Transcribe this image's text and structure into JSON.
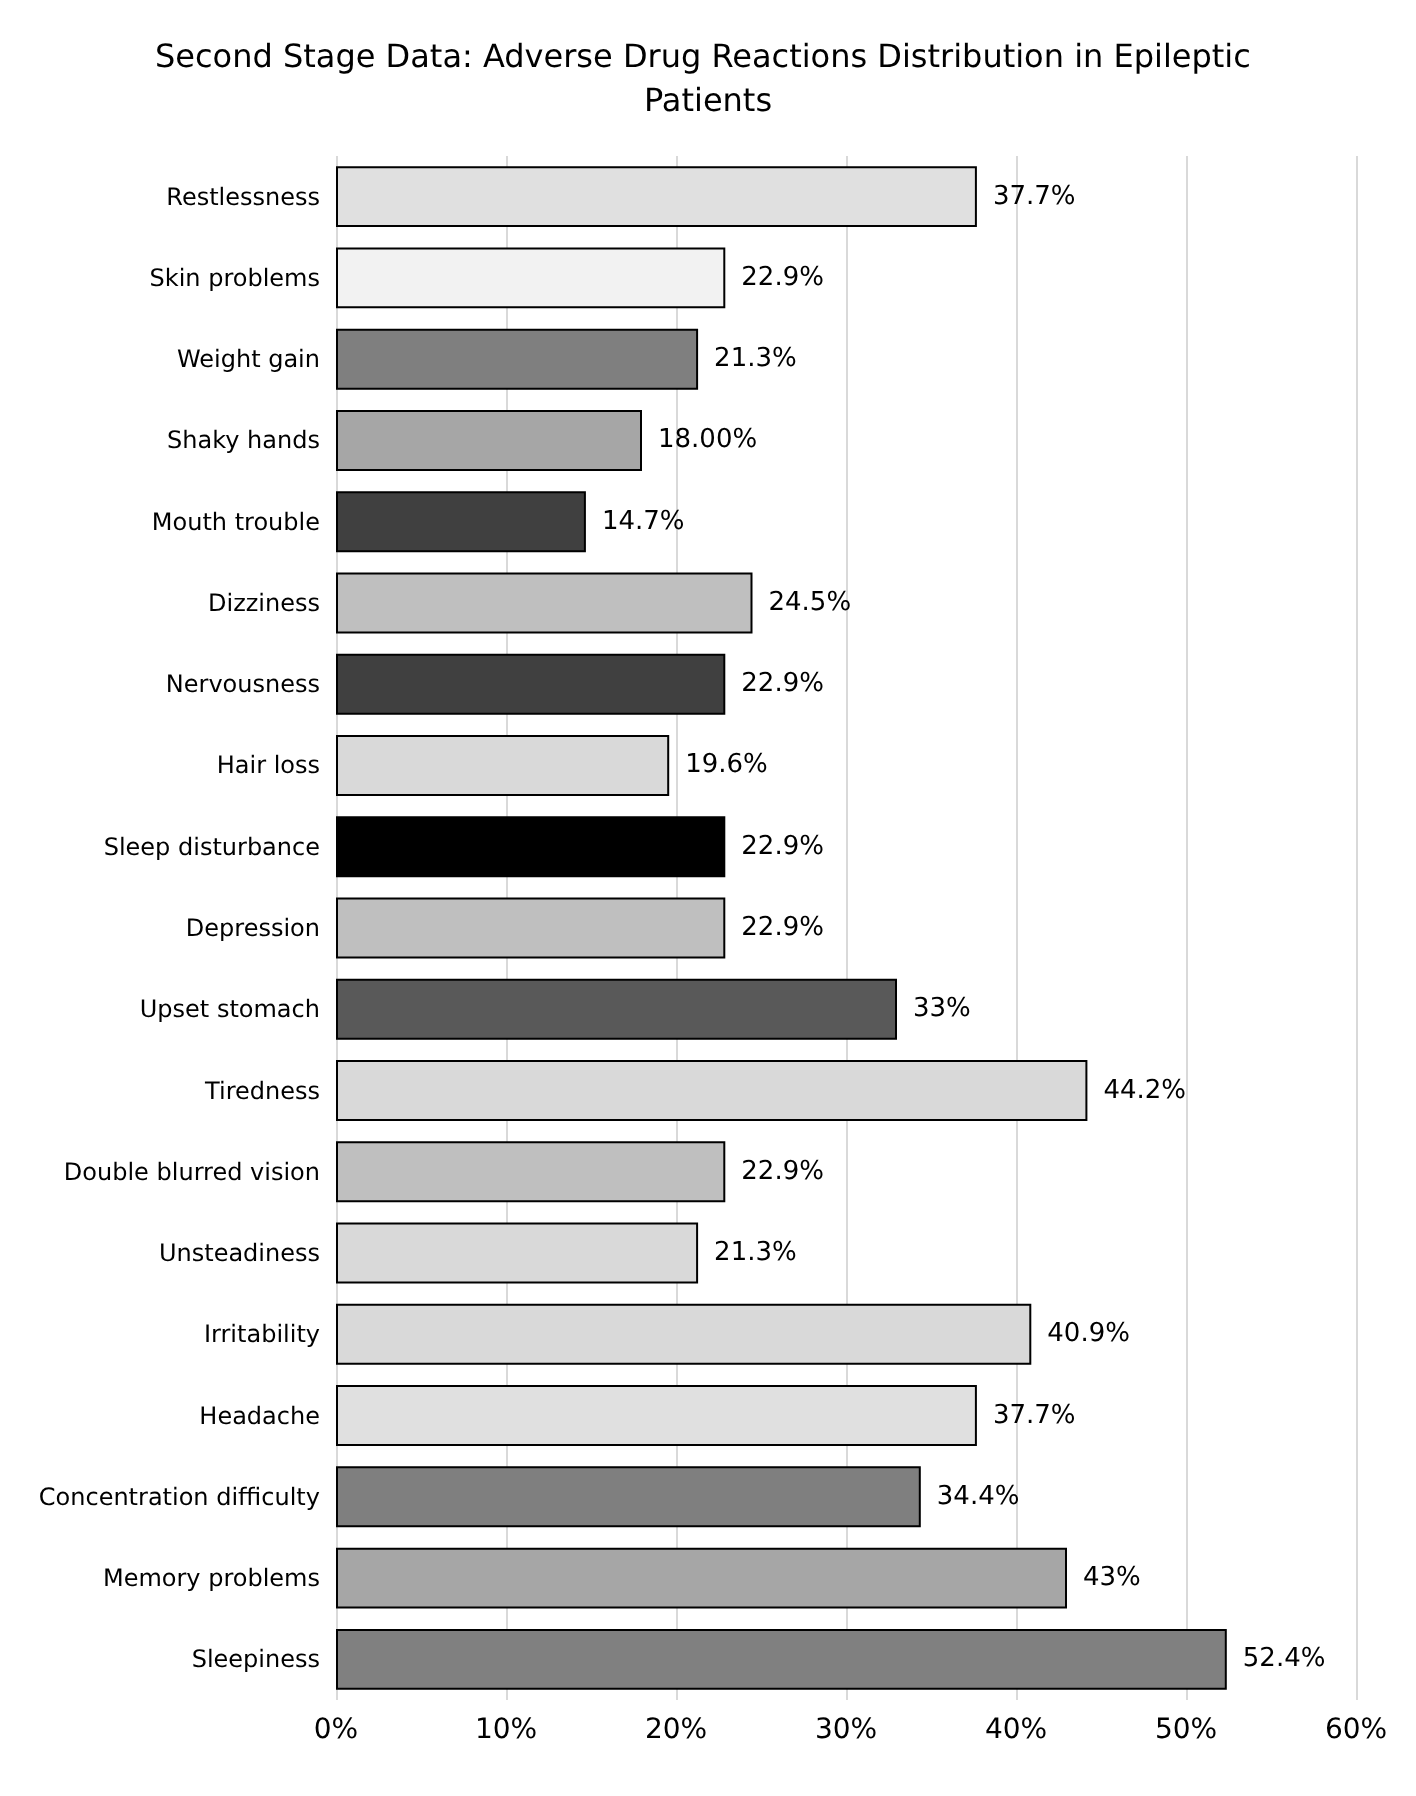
{
  "chart_data": {
    "type": "bar",
    "orientation": "horizontal",
    "title": "Second Stage Data: Adverse Drug Reactions Distribution in Epileptic Patients",
    "categories": [
      "Restlessness",
      "Skin problems",
      "Weight gain",
      "Shaky hands",
      "Mouth trouble",
      "Dizziness",
      "Nervousness",
      "Hair loss",
      "Sleep disturbance",
      "Depression",
      "Upset stomach",
      "Tiredness",
      "Double blurred vision",
      "Unsteadiness",
      "Irritability",
      "Headache",
      "Concentration difficulty",
      "Memory problems",
      "Sleepiness"
    ],
    "values": [
      37.7,
      22.9,
      21.3,
      18.0,
      14.7,
      24.5,
      22.9,
      19.6,
      22.9,
      22.9,
      33,
      44.2,
      22.9,
      21.3,
      40.9,
      37.7,
      34.4,
      43,
      52.4
    ],
    "value_labels": [
      "37.7%",
      "22.9%",
      "21.3%",
      "18.00%",
      "14.7%",
      "24.5%",
      "22.9%",
      "19.6%",
      "22.9%",
      "22.9%",
      "33%",
      "44.2%",
      "22.9%",
      "21.3%",
      "40.9%",
      "37.7%",
      "34.4%",
      "43%",
      "52.4%"
    ],
    "colors": [
      "#e0e0e0",
      "#f2f2f2",
      "#7f7f7f",
      "#a6a6a6",
      "#404040",
      "#bfbfbf",
      "#404040",
      "#d9d9d9",
      "#000000",
      "#bfbfbf",
      "#595959",
      "#d9d9d9",
      "#bfbfbf",
      "#d9d9d9",
      "#d9d9d9",
      "#e0e0e0",
      "#7f7f7f",
      "#a6a6a6",
      "#808080"
    ],
    "xlim": [
      0,
      60
    ],
    "xticks": [
      {
        "value": 0,
        "label": "0%"
      },
      {
        "value": 10,
        "label": "10%"
      },
      {
        "value": 20,
        "label": "20%"
      },
      {
        "value": 30,
        "label": "30%"
      },
      {
        "value": 40,
        "label": "40%"
      },
      {
        "value": 50,
        "label": "50%"
      },
      {
        "value": 60,
        "label": "60%"
      }
    ],
    "grid": "x"
  }
}
